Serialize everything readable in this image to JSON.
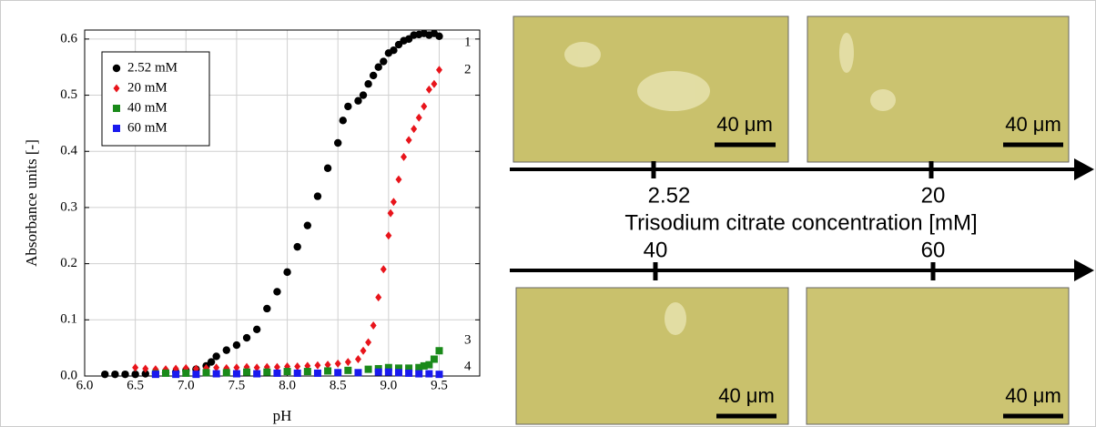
{
  "chart_data": {
    "type": "scatter",
    "xlabel": "pH",
    "ylabel": "Absorbance units [-]",
    "xlim": [
      6.0,
      9.9
    ],
    "ylim": [
      0,
      0.616
    ],
    "xticks": [
      {
        "value": 6.0,
        "label": "6.0"
      },
      6.5,
      {
        "value": 7.0,
        "label": "7.0"
      },
      7.5,
      {
        "value": 8.0,
        "label": "8.0"
      },
      8.5,
      {
        "value": 9.0,
        "label": "9.0"
      },
      9.5
    ],
    "yticks": [
      {
        "value": 0,
        "label": "0.0"
      },
      0.1,
      0.2,
      0.3,
      0.4,
      0.5,
      0.6
    ],
    "grid": true,
    "legend": "upper left",
    "annotations": [
      "1",
      "2",
      "3",
      "4"
    ],
    "series": [
      {
        "name": "2.52 mM",
        "color": "#000000",
        "marker": "circle",
        "x": [
          6.2,
          6.3,
          6.4,
          6.5,
          6.6,
          6.7,
          6.8,
          6.9,
          7.0,
          7.1,
          7.2,
          7.25,
          7.3,
          7.4,
          7.5,
          7.6,
          7.7,
          7.8,
          7.9,
          8.0,
          8.1,
          8.2,
          8.3,
          8.4,
          8.5,
          8.55,
          8.6,
          8.7,
          8.75,
          8.8,
          8.85,
          8.9,
          8.95,
          9.0,
          9.05,
          9.1,
          9.15,
          9.2,
          9.25,
          9.3,
          9.35,
          9.4,
          9.45,
          9.5
        ],
        "values": [
          0.003,
          0.003,
          0.003,
          0.003,
          0.004,
          0.005,
          0.006,
          0.007,
          0.01,
          0.012,
          0.018,
          0.025,
          0.035,
          0.046,
          0.055,
          0.068,
          0.083,
          0.12,
          0.15,
          0.185,
          0.23,
          0.268,
          0.32,
          0.37,
          0.415,
          0.455,
          0.48,
          0.49,
          0.5,
          0.52,
          0.535,
          0.55,
          0.56,
          0.575,
          0.58,
          0.59,
          0.597,
          0.6,
          0.607,
          0.608,
          0.61,
          0.607,
          0.61,
          0.605
        ]
      },
      {
        "name": "20 mM",
        "color": "#e8141b",
        "marker": "diamond",
        "x": [
          6.5,
          6.6,
          6.7,
          6.8,
          6.9,
          7.0,
          7.1,
          7.2,
          7.3,
          7.4,
          7.5,
          7.6,
          7.7,
          7.8,
          7.9,
          8.0,
          8.1,
          8.2,
          8.3,
          8.4,
          8.5,
          8.6,
          8.7,
          8.75,
          8.8,
          8.85,
          8.9,
          8.95,
          9.0,
          9.02,
          9.05,
          9.1,
          9.15,
          9.2,
          9.25,
          9.3,
          9.35,
          9.4,
          9.45,
          9.5
        ],
        "values": [
          0.015,
          0.013,
          0.012,
          0.012,
          0.013,
          0.014,
          0.013,
          0.014,
          0.015,
          0.014,
          0.015,
          0.016,
          0.015,
          0.016,
          0.016,
          0.017,
          0.017,
          0.018,
          0.019,
          0.02,
          0.022,
          0.025,
          0.03,
          0.045,
          0.06,
          0.09,
          0.14,
          0.19,
          0.25,
          0.29,
          0.31,
          0.35,
          0.39,
          0.42,
          0.44,
          0.46,
          0.48,
          0.51,
          0.52,
          0.545
        ]
      },
      {
        "name": "40 mM",
        "color": "#1a8a1a",
        "marker": "square",
        "x": [
          6.7,
          6.8,
          7.0,
          7.2,
          7.4,
          7.6,
          7.8,
          8.0,
          8.2,
          8.4,
          8.6,
          8.8,
          8.9,
          9.0,
          9.1,
          9.2,
          9.3,
          9.35,
          9.4,
          9.45,
          9.5
        ],
        "values": [
          0.004,
          0.005,
          0.005,
          0.006,
          0.006,
          0.007,
          0.007,
          0.008,
          0.008,
          0.009,
          0.01,
          0.012,
          0.013,
          0.015,
          0.014,
          0.014,
          0.015,
          0.018,
          0.02,
          0.03,
          0.045
        ]
      },
      {
        "name": "60 mM",
        "color": "#1a1aee",
        "marker": "square",
        "x": [
          6.7,
          6.9,
          7.1,
          7.3,
          7.5,
          7.7,
          7.9,
          8.1,
          8.3,
          8.5,
          8.7,
          8.9,
          9.0,
          9.1,
          9.2,
          9.3,
          9.4,
          9.5
        ],
        "values": [
          0.003,
          0.003,
          0.003,
          0.004,
          0.004,
          0.004,
          0.005,
          0.005,
          0.005,
          0.006,
          0.006,
          0.007,
          0.007,
          0.006,
          0.005,
          0.004,
          0.004,
          0.003
        ]
      }
    ]
  },
  "panel": {
    "top_labels": [
      "2.52",
      "20"
    ],
    "axis_label": "Trisodium citrate concentration [mM]",
    "bottom_labels": [
      "40",
      "60"
    ],
    "scale_labels": [
      "40 μm",
      "40 μm",
      "40 μm",
      "40 μm"
    ]
  }
}
